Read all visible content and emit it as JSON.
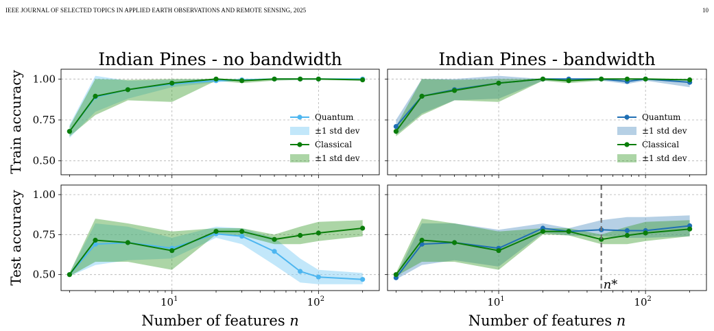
{
  "header": {
    "journal": "IEEE JOURNAL OF SELECTED TOPICS IN APPLIED EARTH OBSERVATIONS AND REMOTE SENSING, 2025",
    "page_number": "10"
  },
  "colors": {
    "classical": "#0a7d0a",
    "classical_band": "#3a9a2a",
    "quantum_light": "#4db6f0",
    "quantum_light_band": "#8fd3f5",
    "quantum_dark": "#1f6fb4",
    "quantum_dark_band": "#7aa9cf",
    "grid": "#b0b0b0",
    "nstar_line": "#707070"
  },
  "chart_data": [
    {
      "type": "line",
      "panel": "top-left",
      "title": "Indian Pines - no bandwidth",
      "xlabel": "",
      "ylabel": "Train accuracy",
      "xscale": "log",
      "xlim": [
        1.75,
        260
      ],
      "ylim": [
        0.415,
        1.06
      ],
      "yticks": [
        "0.50",
        "0.75",
        "1.00"
      ],
      "xticks": [
        "10^1",
        "10^2"
      ],
      "grid": true,
      "legend_position": "right",
      "legend": [
        "Quantum",
        "±1 std dev",
        "Classical",
        "±1 std dev"
      ],
      "x": [
        2,
        3,
        5,
        10,
        20,
        30,
        50,
        75,
        100,
        200
      ],
      "series": [
        {
          "name": "Quantum",
          "style": "light",
          "values": [
            0.68,
            0.89,
            0.935,
            0.97,
            0.99,
            0.995,
            1.0,
            1.0,
            1.0,
            1.0
          ],
          "lower": [
            0.64,
            0.8,
            0.88,
            0.95,
            0.98,
            0.99,
            0.995,
            0.998,
            0.998,
            0.995
          ],
          "upper": [
            0.72,
            1.02,
            0.99,
            0.995,
            1.0,
            1.0,
            1.0,
            1.0,
            1.0,
            1.0
          ]
        },
        {
          "name": "Classical",
          "style": "green",
          "values": [
            0.68,
            0.895,
            0.935,
            0.975,
            1.0,
            0.99,
            1.0,
            1.0,
            1.0,
            0.995
          ],
          "lower": [
            0.65,
            0.78,
            0.87,
            0.86,
            0.99,
            0.975,
            0.99,
            0.995,
            0.995,
            0.99
          ],
          "upper": [
            0.71,
            1.0,
            0.995,
            1.0,
            1.0,
            1.0,
            1.0,
            1.0,
            1.0,
            1.0
          ]
        }
      ]
    },
    {
      "type": "line",
      "panel": "top-right",
      "title": "Indian Pines - bandwidth",
      "xlabel": "",
      "ylabel": "",
      "xscale": "log",
      "xlim": [
        1.75,
        260
      ],
      "ylim": [
        0.415,
        1.06
      ],
      "yticks": [],
      "xticks": [
        "10^1",
        "10^2"
      ],
      "grid": true,
      "legend_position": "right",
      "legend": [
        "Quantum",
        "±1 std dev",
        "Classical",
        "±1 std dev"
      ],
      "x": [
        2,
        3,
        5,
        10,
        20,
        30,
        50,
        75,
        100,
        200
      ],
      "series": [
        {
          "name": "Quantum",
          "style": "dark",
          "values": [
            0.71,
            0.895,
            0.935,
            0.975,
            1.0,
            1.0,
            1.0,
            0.985,
            1.0,
            0.98
          ],
          "lower": [
            0.66,
            0.79,
            0.87,
            0.88,
            0.99,
            0.99,
            0.99,
            0.97,
            0.99,
            0.95
          ],
          "upper": [
            0.75,
            1.0,
            1.0,
            1.02,
            1.0,
            1.0,
            1.0,
            1.0,
            1.0,
            1.0
          ]
        },
        {
          "name": "Classical",
          "style": "green",
          "values": [
            0.68,
            0.895,
            0.93,
            0.975,
            1.0,
            0.99,
            1.0,
            1.0,
            1.0,
            0.995
          ],
          "lower": [
            0.65,
            0.78,
            0.87,
            0.86,
            0.99,
            0.975,
            0.99,
            0.995,
            0.995,
            0.99
          ],
          "upper": [
            0.71,
            1.0,
            0.995,
            1.0,
            1.0,
            1.0,
            1.0,
            1.0,
            1.0,
            1.0
          ]
        }
      ]
    },
    {
      "type": "line",
      "panel": "bottom-left",
      "title": "",
      "xlabel": "Number of features n",
      "ylabel": "Test accuracy",
      "xscale": "log",
      "xlim": [
        1.75,
        260
      ],
      "ylim": [
        0.4,
        1.06
      ],
      "yticks": [
        "0.50",
        "0.75",
        "1.00"
      ],
      "xticks": [
        "10^1",
        "10^2"
      ],
      "grid": true,
      "x": [
        2,
        3,
        5,
        10,
        20,
        30,
        50,
        75,
        100,
        200
      ],
      "series": [
        {
          "name": "Quantum",
          "style": "light",
          "values": [
            0.5,
            0.69,
            0.7,
            0.665,
            0.755,
            0.74,
            0.645,
            0.52,
            0.485,
            0.47
          ],
          "lower": [
            0.49,
            0.56,
            0.59,
            0.6,
            0.73,
            0.69,
            0.56,
            0.45,
            0.44,
            0.44
          ],
          "upper": [
            0.51,
            0.82,
            0.8,
            0.73,
            0.8,
            0.79,
            0.73,
            0.6,
            0.53,
            0.51
          ]
        },
        {
          "name": "Classical",
          "style": "green",
          "values": [
            0.5,
            0.715,
            0.7,
            0.65,
            0.77,
            0.77,
            0.72,
            0.745,
            0.76,
            0.79
          ],
          "lower": [
            0.49,
            0.58,
            0.58,
            0.53,
            0.75,
            0.745,
            0.69,
            0.69,
            0.71,
            0.74
          ],
          "upper": [
            0.51,
            0.85,
            0.82,
            0.77,
            0.79,
            0.79,
            0.75,
            0.8,
            0.83,
            0.84
          ]
        }
      ]
    },
    {
      "type": "line",
      "panel": "bottom-right",
      "title": "",
      "xlabel": "Number of features n",
      "ylabel": "",
      "xscale": "log",
      "xlim": [
        1.75,
        260
      ],
      "ylim": [
        0.4,
        1.06
      ],
      "yticks": [],
      "xticks": [
        "10^1",
        "10^2"
      ],
      "grid": true,
      "annotation": "n*",
      "vline_x": 50,
      "x": [
        2,
        3,
        5,
        10,
        20,
        30,
        50,
        75,
        100,
        200
      ],
      "series": [
        {
          "name": "Quantum",
          "style": "dark",
          "values": [
            0.48,
            0.69,
            0.7,
            0.665,
            0.79,
            0.77,
            0.78,
            0.775,
            0.775,
            0.805
          ],
          "lower": [
            0.47,
            0.56,
            0.59,
            0.55,
            0.76,
            0.745,
            0.74,
            0.73,
            0.73,
            0.74
          ],
          "upper": [
            0.49,
            0.82,
            0.82,
            0.78,
            0.82,
            0.79,
            0.84,
            0.86,
            0.86,
            0.87
          ]
        },
        {
          "name": "Classical",
          "style": "green",
          "values": [
            0.5,
            0.715,
            0.7,
            0.65,
            0.77,
            0.77,
            0.72,
            0.745,
            0.76,
            0.785
          ],
          "lower": [
            0.49,
            0.58,
            0.58,
            0.53,
            0.75,
            0.745,
            0.69,
            0.69,
            0.71,
            0.74
          ],
          "upper": [
            0.51,
            0.85,
            0.82,
            0.77,
            0.79,
            0.79,
            0.75,
            0.8,
            0.83,
            0.84
          ]
        }
      ]
    }
  ]
}
